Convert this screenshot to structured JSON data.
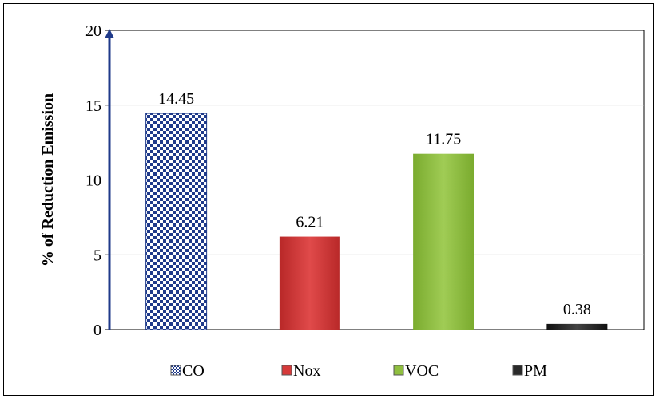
{
  "chart_data": {
    "type": "bar",
    "title": "",
    "xlabel": "",
    "ylabel": "% of Reduction Emission",
    "ylim": [
      0,
      20
    ],
    "yticks": [
      "0",
      "5",
      "10",
      "15",
      "20"
    ],
    "grid": true,
    "legend_position": "bottom",
    "categories": [
      "CO",
      "Nox",
      "VOC",
      "PM"
    ],
    "values": [
      14.45,
      6.21,
      11.75,
      0.38
    ],
    "data_labels": [
      "14.45",
      "6.21",
      "11.75",
      "0.38"
    ],
    "colors": [
      "#1f3a8a",
      "#d63a3a",
      "#8fbf3f",
      "#2a2a2a"
    ],
    "patterns": [
      "checker",
      "solid",
      "solid",
      "solid"
    ]
  }
}
